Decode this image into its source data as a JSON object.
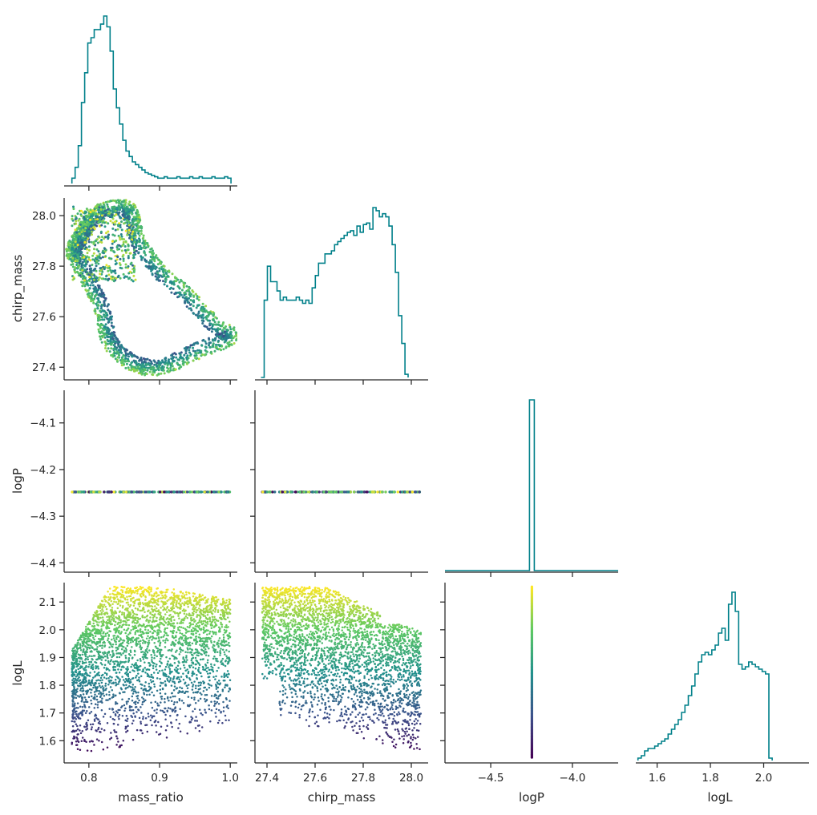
{
  "figure": {
    "type": "corner-plot",
    "variables": [
      "mass_ratio",
      "chirp_mass",
      "logP",
      "logL"
    ],
    "hist_color": "#00808a",
    "colormap": "viridis",
    "colormap_stops": [
      "#440154",
      "#3b528b",
      "#21918c",
      "#5ec962",
      "#fde725"
    ]
  },
  "chart_data": [
    {
      "type": "histogram",
      "name": "hist-mass_ratio",
      "variable": "mass_ratio",
      "xlim": [
        0.765,
        1.01
      ],
      "xticks": [
        0.8,
        0.9,
        1.0
      ],
      "bin_edges_start": 0.776,
      "bin_width": 0.0045,
      "counts": [
        4,
        12,
        28,
        60,
        82,
        104,
        108,
        114,
        114,
        118,
        124,
        116,
        98,
        70,
        56,
        44,
        32,
        24,
        20,
        16,
        14,
        12,
        10,
        8,
        7,
        6,
        5,
        4,
        4,
        5,
        4,
        4,
        4,
        5,
        4,
        4,
        4,
        5,
        4,
        4,
        5,
        4,
        4,
        4,
        5,
        4,
        4,
        4,
        5,
        4
      ],
      "ymax": 124
    },
    {
      "type": "histogram",
      "name": "hist-chirp_mass",
      "variable": "chirp_mass",
      "xlim": [
        27.35,
        28.07
      ],
      "xticks": [
        27.4,
        27.6,
        27.8,
        28.0
      ],
      "bin_edges_start": 27.375,
      "bin_width": 0.0133,
      "counts": [
        0,
        50,
        72,
        62,
        62,
        56,
        50,
        52,
        50,
        50,
        50,
        52,
        50,
        48,
        50,
        48,
        58,
        66,
        74,
        74,
        80,
        80,
        82,
        86,
        88,
        90,
        92,
        94,
        95,
        92,
        98,
        94,
        99,
        100,
        96,
        110,
        108,
        104,
        106,
        104,
        98,
        86,
        68,
        40,
        22,
        2
      ],
      "ymax": 110
    },
    {
      "type": "histogram",
      "name": "hist-logP",
      "variable": "logP",
      "xlim": [
        -4.78,
        -3.72
      ],
      "xticks": [
        -4.5,
        -4.0
      ],
      "spike_at": -4.248,
      "ymax": 1
    },
    {
      "type": "histogram",
      "name": "hist-logL",
      "variable": "logL",
      "xlim": [
        1.52,
        2.17
      ],
      "xticks": [
        1.6,
        1.8,
        2.0
      ],
      "bin_edges_start": 1.528,
      "bin_width": 0.0126,
      "counts": [
        2,
        4,
        8,
        10,
        10,
        12,
        14,
        16,
        18,
        22,
        26,
        30,
        34,
        40,
        46,
        54,
        62,
        72,
        82,
        88,
        90,
        88,
        92,
        96,
        106,
        110,
        100,
        130,
        140,
        124,
        80,
        76,
        78,
        82,
        80,
        78,
        76,
        74,
        72,
        2
      ],
      "ymax": 140
    },
    {
      "type": "scatter",
      "name": "scatter-chirp_mass-vs-mass_ratio",
      "x_variable": "mass_ratio",
      "y_variable": "chirp_mass",
      "xlim": [
        0.765,
        1.01
      ],
      "ylim": [
        27.35,
        28.07
      ],
      "xticks": [
        0.8,
        0.9,
        1.0
      ],
      "yticks": [
        27.4,
        27.6,
        27.8,
        28.0
      ],
      "points": [
        [
          0.78,
          27.88
        ],
        [
          0.79,
          27.92
        ],
        [
          0.8,
          27.97
        ],
        [
          0.82,
          28.02
        ],
        [
          0.85,
          28.03
        ],
        [
          0.86,
          28.0
        ],
        [
          0.87,
          27.9
        ],
        [
          0.9,
          27.78
        ],
        [
          0.94,
          27.68
        ],
        [
          0.98,
          27.56
        ],
        [
          1.0,
          27.52
        ],
        [
          0.95,
          27.46
        ],
        [
          0.9,
          27.4
        ],
        [
          0.86,
          27.42
        ],
        [
          0.83,
          27.5
        ],
        [
          0.82,
          27.62
        ],
        [
          0.8,
          27.74
        ],
        [
          0.78,
          27.84
        ]
      ]
    },
    {
      "type": "scatter",
      "name": "scatter-logP-vs-mass_ratio",
      "x_variable": "mass_ratio",
      "y_variable": "logP",
      "xlim": [
        0.765,
        1.01
      ],
      "ylim": [
        -4.42,
        -4.03
      ],
      "yticks": [
        -4.4,
        -4.3,
        -4.2,
        -4.1
      ],
      "x_range": [
        0.776,
        1.0
      ],
      "y_value": -4.248
    },
    {
      "type": "scatter",
      "name": "scatter-logP-vs-chirp_mass",
      "x_variable": "chirp_mass",
      "y_variable": "logP",
      "xlim": [
        27.35,
        28.07
      ],
      "ylim": [
        -4.42,
        -4.03
      ],
      "x_range": [
        27.38,
        28.04
      ],
      "y_value": -4.248
    },
    {
      "type": "scatter",
      "name": "scatter-logL-vs-mass_ratio",
      "x_variable": "mass_ratio",
      "y_variable": "logL",
      "xlim": [
        0.765,
        1.01
      ],
      "ylim": [
        1.52,
        2.17
      ],
      "xticks": [
        0.8,
        0.9,
        1.0
      ],
      "yticks": [
        1.6,
        1.7,
        1.8,
        1.9,
        2.0,
        2.1
      ],
      "x_range": [
        0.776,
        1.0
      ],
      "y_range": [
        1.54,
        2.155
      ]
    },
    {
      "type": "scatter",
      "name": "scatter-logL-vs-chirp_mass",
      "x_variable": "chirp_mass",
      "y_variable": "logL",
      "xlim": [
        27.35,
        28.07
      ],
      "ylim": [
        1.52,
        2.17
      ],
      "xticks": [
        27.4,
        27.6,
        27.8,
        28.0
      ],
      "x_range": [
        27.38,
        28.04
      ],
      "y_range": [
        1.54,
        2.155
      ]
    },
    {
      "type": "scatter",
      "name": "scatter-logL-vs-logP",
      "x_variable": "logP",
      "y_variable": "logL",
      "xlim": [
        -4.78,
        -3.72
      ],
      "ylim": [
        1.52,
        2.17
      ],
      "xticks": [
        -4.5,
        -4.0
      ],
      "x_value": -4.248,
      "y_range": [
        1.54,
        2.155
      ]
    }
  ],
  "labels": {
    "x": [
      "mass_ratio",
      "chirp_mass",
      "logP",
      "logL"
    ],
    "y": [
      "chirp_mass",
      "logP",
      "logL"
    ]
  },
  "tick_labels": {
    "mass_ratio": [
      "0.8",
      "0.9",
      "1.0"
    ],
    "chirp_mass_x": [
      "27.4",
      "27.6",
      "27.8",
      "28.0"
    ],
    "chirp_mass_y": [
      "27.4",
      "27.6",
      "27.8",
      "28.0"
    ],
    "logP_x": [
      "−4.5",
      "−4.0"
    ],
    "logP_y": [
      "−4.4",
      "−4.3",
      "−4.2",
      "−4.1"
    ],
    "logL_x": [
      "1.6",
      "1.8",
      "2.0"
    ],
    "logL_y": [
      "1.6",
      "1.7",
      "1.8",
      "1.9",
      "2.0",
      "2.1"
    ]
  }
}
